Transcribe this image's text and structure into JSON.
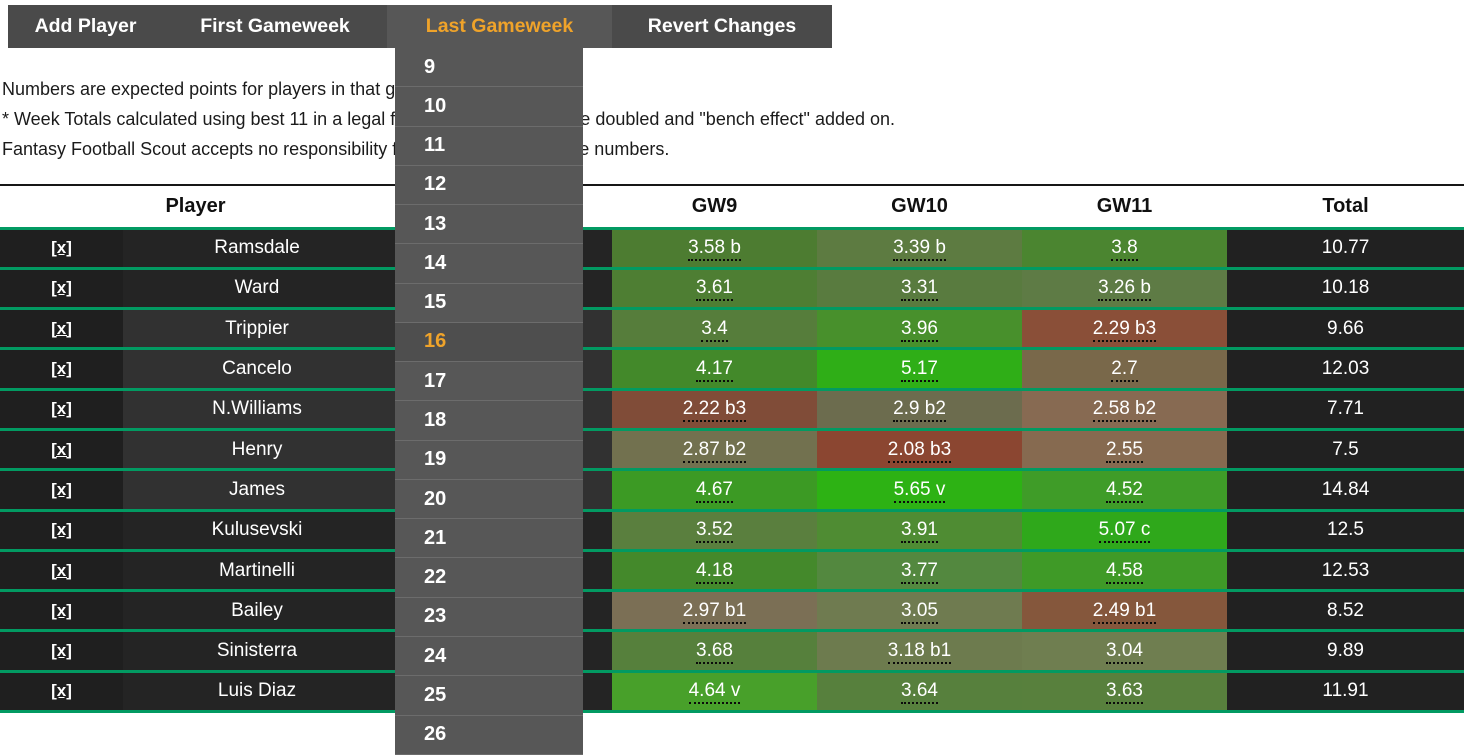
{
  "colors": {
    "accent_orange": "#efa32a",
    "separator_teal": "#029a62",
    "menu_bar_bg": "#4a4a4a",
    "dropdown_bg": "#575757",
    "row_dark_bg": "#242424",
    "row_light_bg": "#313131"
  },
  "menu": {
    "items": [
      {
        "label": "Add Player"
      },
      {
        "label": "First Gameweek"
      },
      {
        "label": "Last Gameweek",
        "active": true
      },
      {
        "label": "Revert Changes"
      }
    ]
  },
  "dropdown": {
    "options": [
      "9",
      "10",
      "11",
      "12",
      "13",
      "14",
      "15",
      "16",
      "17",
      "18",
      "19",
      "20",
      "21",
      "22",
      "23",
      "24",
      "25",
      "26"
    ],
    "selected": "16"
  },
  "notes": {
    "lines": [
      "Numbers are expected points for players in that gameweek.",
      "* Week Totals calculated using best 11 in a legal formation with best score doubled and \"bench effect\" added on.",
      "Fantasy Football Scout accepts no responsibility for the accuracy of these numbers."
    ]
  },
  "table": {
    "remove_label": "[x]",
    "headers": {
      "player": "Player",
      "gw": [
        "GW9",
        "GW10",
        "GW11"
      ],
      "total": "Total"
    },
    "rows": [
      {
        "name": "Ramsdale",
        "highlight": false,
        "total": "10.77",
        "cells": [
          {
            "text": "3.58 b",
            "color": "#4d7c31"
          },
          {
            "text": "3.39 b",
            "color": "#5d7b41"
          },
          {
            "text": "3.8",
            "color": "#4b8530"
          }
        ]
      },
      {
        "name": "Ward",
        "highlight": false,
        "total": "10.18",
        "cells": [
          {
            "text": "3.61",
            "color": "#4e7e33"
          },
          {
            "text": "3.31",
            "color": "#597b3f"
          },
          {
            "text": "3.26 b",
            "color": "#5e7b45"
          }
        ]
      },
      {
        "name": "Trippier",
        "highlight": true,
        "total": "9.66",
        "cells": [
          {
            "text": "3.4",
            "color": "#567d3b"
          },
          {
            "text": "3.96",
            "color": "#48902c"
          },
          {
            "text": "2.29 b3",
            "color": "#8a4f38"
          }
        ]
      },
      {
        "name": "Cancelo",
        "highlight": true,
        "total": "12.03",
        "cells": [
          {
            "text": "4.17",
            "color": "#43892a"
          },
          {
            "text": "5.17",
            "color": "#2fae17"
          },
          {
            "text": "2.7",
            "color": "#79684a"
          }
        ]
      },
      {
        "name": "N.Williams",
        "highlight": true,
        "total": "7.71",
        "cells": [
          {
            "text": "2.22 b3",
            "color": "#804c38"
          },
          {
            "text": "2.9 b2",
            "color": "#6c6c4e"
          },
          {
            "text": "2.58 b2",
            "color": "#876a52"
          }
        ]
      },
      {
        "name": "Henry",
        "highlight": true,
        "total": "7.5",
        "cells": [
          {
            "text": "2.87 b2",
            "color": "#72714f"
          },
          {
            "text": "2.08 b3",
            "color": "#8b4631"
          },
          {
            "text": "2.55",
            "color": "#866a50"
          }
        ]
      },
      {
        "name": "James",
        "highlight": true,
        "total": "14.84",
        "cells": [
          {
            "text": "4.67",
            "color": "#3c9a24"
          },
          {
            "text": "5.65 v",
            "color": "#2db214"
          },
          {
            "text": "4.52",
            "color": "#3f9c28"
          }
        ]
      },
      {
        "name": "Kulusevski",
        "highlight": false,
        "total": "12.5",
        "cells": [
          {
            "text": "3.52",
            "color": "#5a7f3e"
          },
          {
            "text": "3.91",
            "color": "#4f8c33"
          },
          {
            "text": "5.07 c",
            "color": "#2fa81b"
          }
        ]
      },
      {
        "name": "Martinelli",
        "highlight": false,
        "total": "12.53",
        "cells": [
          {
            "text": "4.18",
            "color": "#44892b"
          },
          {
            "text": "3.77",
            "color": "#53883f"
          },
          {
            "text": "4.58",
            "color": "#3f9a27"
          }
        ]
      },
      {
        "name": "Bailey",
        "highlight": false,
        "total": "8.52",
        "cells": [
          {
            "text": "2.97 b1",
            "color": "#7b6f55"
          },
          {
            "text": "3.05",
            "color": "#6f7b50"
          },
          {
            "text": "2.49 b1",
            "color": "#85573c"
          }
        ]
      },
      {
        "name": "Sinisterra",
        "highlight": false,
        "total": "9.89",
        "cells": [
          {
            "text": "3.68",
            "color": "#56803c"
          },
          {
            "text": "3.18 b1",
            "color": "#6d7b4e"
          },
          {
            "text": "3.04",
            "color": "#6f7e50"
          }
        ]
      },
      {
        "name": "Luis Diaz",
        "highlight": false,
        "total": "11.91",
        "cells": [
          {
            "text": "4.64 v",
            "color": "#48a02a"
          },
          {
            "text": "3.64",
            "color": "#57803d"
          },
          {
            "text": "3.63",
            "color": "#58803d"
          }
        ]
      }
    ]
  }
}
